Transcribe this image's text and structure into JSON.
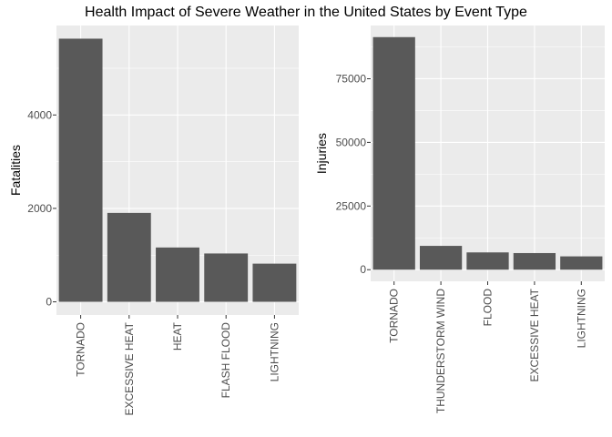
{
  "title": "Health Impact of Severe Weather in the United States by Event Type",
  "colors": {
    "bar": "#595959",
    "panel": "#ebebeb",
    "grid_major": "#ffffff",
    "text": "#4d4d4d"
  },
  "chart_data": [
    {
      "type": "bar",
      "categories": [
        "TORNADO",
        "EXCESSIVE HEAT",
        "HEAT",
        "FLASH FLOOD",
        "LIGHTNING"
      ],
      "values": [
        5633,
        1903,
        1163,
        1035,
        817
      ],
      "xlabel": "",
      "ylabel": "Fatalities",
      "ylim": [
        -282,
        5915
      ],
      "yticks": [
        0,
        2000,
        4000
      ],
      "ytick_labels": [
        "0",
        "2000",
        "4000"
      ],
      "grid": true
    },
    {
      "type": "bar",
      "categories": [
        "TORNADO",
        "THUNDERSTORM WIND",
        "FLOOD",
        "EXCESSIVE HEAT",
        "LIGHTNING"
      ],
      "values": [
        91346,
        9353,
        6791,
        6525,
        5230
      ],
      "xlabel": "",
      "ylabel": "Injuries",
      "ylim": [
        -4567,
        95913
      ],
      "yticks": [
        0,
        25000,
        50000,
        75000
      ],
      "ytick_labels": [
        "0",
        "25000",
        "50000",
        "75000"
      ],
      "grid": true
    }
  ]
}
